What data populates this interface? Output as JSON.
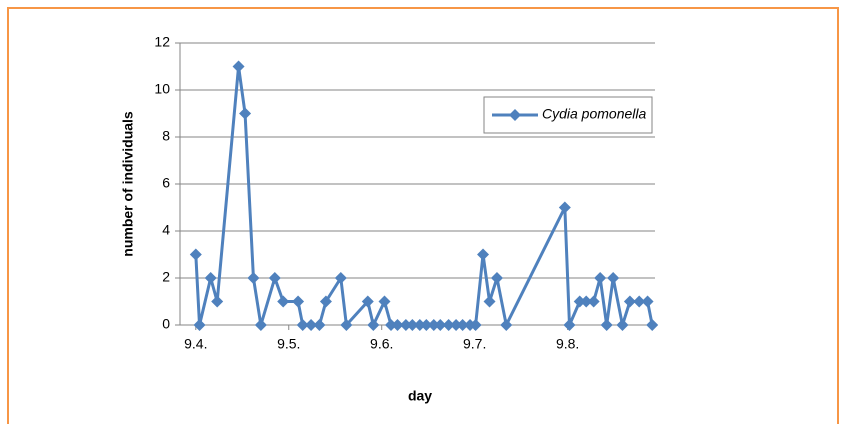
{
  "chart_data": {
    "type": "line",
    "x_label": "day",
    "y_label": "number of individuals",
    "x": [
      9.4,
      9.404,
      9.416,
      9.423,
      9.446,
      9.453,
      9.462,
      9.47,
      9.485,
      9.494,
      9.51,
      9.515,
      9.524,
      9.533,
      9.54,
      9.556,
      9.562,
      9.585,
      9.591,
      9.603,
      9.61,
      9.617,
      9.626,
      9.633,
      9.641,
      9.648,
      9.656,
      9.663,
      9.672,
      9.68,
      9.687,
      9.695,
      9.701,
      9.709,
      9.716,
      9.724,
      9.734,
      9.797,
      9.802,
      9.813,
      9.82,
      9.828,
      9.835,
      9.842,
      9.849,
      9.859,
      9.867,
      9.877,
      9.886,
      9.891
    ],
    "series": [
      {
        "name": "Cydia pomonella",
        "color": "#4f81bd",
        "values": [
          3,
          0,
          2,
          1,
          11,
          9,
          2,
          0,
          2,
          1,
          1,
          0,
          0,
          0,
          1,
          2,
          0,
          1,
          0,
          1,
          0,
          0,
          0,
          0,
          0,
          0,
          0,
          0,
          0,
          0,
          0,
          0,
          0,
          3,
          1,
          2,
          0,
          5,
          0,
          1,
          1,
          1,
          2,
          0,
          2,
          0,
          1,
          1,
          1,
          0
        ]
      }
    ],
    "xlim": [
      9.383,
      9.894
    ],
    "xticks": [
      {
        "value": 9.4,
        "label": "9.4."
      },
      {
        "value": 9.5,
        "label": "9.5."
      },
      {
        "value": 9.6,
        "label": "9.6."
      },
      {
        "value": 9.7,
        "label": "9.7."
      },
      {
        "value": 9.8,
        "label": "9.8."
      }
    ],
    "ylim": [
      0,
      12
    ],
    "yticks": [
      0,
      2,
      4,
      6,
      8,
      10,
      12
    ],
    "grid": true,
    "legend": "right"
  }
}
